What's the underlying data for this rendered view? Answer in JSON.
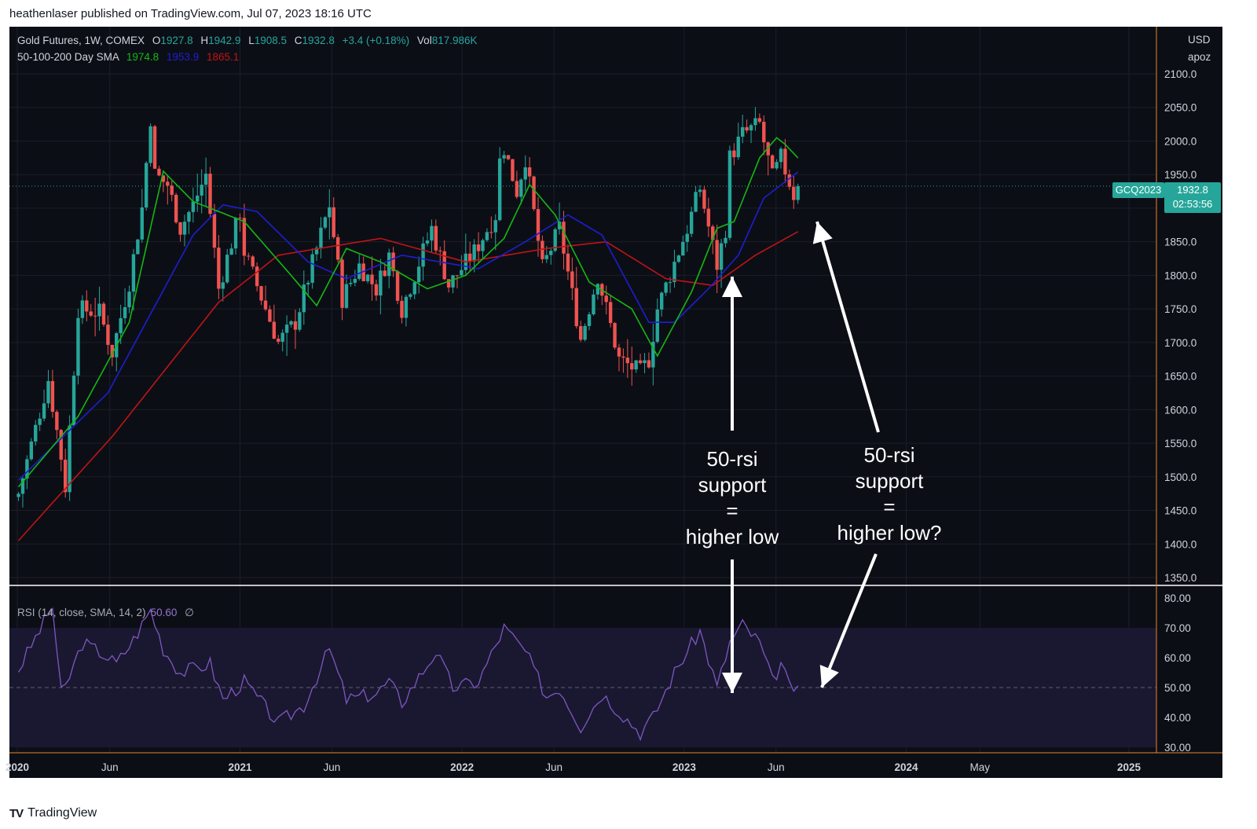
{
  "header": {
    "published": "heathenlaser published on TradingView.com, Jul 07, 2023 18:16 UTC"
  },
  "footer": {
    "logo_text": "TradingView",
    "logo_mark": "TV"
  },
  "legend": {
    "symbol": "Gold Futures, 1W, COMEX",
    "open_label": "O",
    "open": "1927.8",
    "high_label": "H",
    "high": "1942.9",
    "low_label": "L",
    "low": "1908.5",
    "close_label": "C",
    "close": "1932.8",
    "change": "+3.4 (+0.18%)",
    "vol_label": "Vol",
    "vol": "817.986K",
    "sma_label": "50-100-200 Day SMA",
    "sma50": "1974.8",
    "sma100": "1953.9",
    "sma200": "1865.1",
    "rsi_label": "RSI (14, close, SMA, 14, 2)",
    "rsi_value": "50.60",
    "rsi_icon": "∅"
  },
  "currency": {
    "line1": "USD",
    "line2": "apoz"
  },
  "badges": {
    "symbol": "GCQ2023",
    "price": "1932.8",
    "countdown": "02:53:56"
  },
  "colors": {
    "bg": "#0c0e16",
    "up": "#26a69a",
    "down": "#ef5350",
    "sma50": "#14b814",
    "sma100": "#1e1ed2",
    "sma200": "#c01414",
    "rsi": "#7e57c2",
    "rsi_band": "#1a1830",
    "separator": "#ffffff",
    "axis_accent": "#e8862a"
  },
  "annotations": [
    {
      "text_lines": [
        "50-rsi",
        "support",
        "=",
        "higher low"
      ]
    },
    {
      "text_lines": [
        "50-rsi",
        "support",
        "=",
        "higher low?"
      ]
    }
  ],
  "chart_data": [
    {
      "type": "candlestick",
      "x_tick_labels": [
        "2020",
        "Jun",
        "2021",
        "Jun",
        "2022",
        "Jun",
        "2023",
        "Jun",
        "2024",
        "May",
        "2025"
      ],
      "x_tick_dates": [
        "2020-01-01",
        "2020-06-01",
        "2021-01-01",
        "2021-06-01",
        "2022-01-01",
        "2022-06-01",
        "2023-01-01",
        "2023-06-01",
        "2024-01-01",
        "2024-05-01",
        "2025-01-01"
      ],
      "price_ticks": [
        "2100.0",
        "2050.0",
        "2000.0",
        "1950.0",
        "1900.0",
        "1850.0",
        "1800.0",
        "1750.0",
        "1700.0",
        "1650.0",
        "1600.0",
        "1550.0",
        "1500.0",
        "1450.0",
        "1400.0",
        "1350.0"
      ],
      "ylim": [
        1335,
        2110
      ],
      "last_price": 1932.8,
      "price_anchors": [
        [
          "2020-01-03",
          1475
        ],
        [
          "2020-02-21",
          1645
        ],
        [
          "2020-03-13",
          1530
        ],
        [
          "2020-03-20",
          1485
        ],
        [
          "2020-04-10",
          1750
        ],
        [
          "2020-05-15",
          1745
        ],
        [
          "2020-06-05",
          1685
        ],
        [
          "2020-07-03",
          1790
        ],
        [
          "2020-07-24",
          1900
        ],
        [
          "2020-08-07",
          2035
        ],
        [
          "2020-08-14",
          1950
        ],
        [
          "2020-09-04",
          1935
        ],
        [
          "2020-09-25",
          1870
        ],
        [
          "2020-10-16",
          1905
        ],
        [
          "2020-11-06",
          1950
        ],
        [
          "2020-11-27",
          1780
        ],
        [
          "2021-01-01",
          1895
        ],
        [
          "2021-01-08",
          1835
        ],
        [
          "2021-03-05",
          1700
        ],
        [
          "2021-04-02",
          1730
        ],
        [
          "2021-05-28",
          1905
        ],
        [
          "2021-06-18",
          1765
        ],
        [
          "2021-07-16",
          1815
        ],
        [
          "2021-08-13",
          1780
        ],
        [
          "2021-09-03",
          1830
        ],
        [
          "2021-09-24",
          1750
        ],
        [
          "2021-11-12",
          1870
        ],
        [
          "2021-12-10",
          1785
        ],
        [
          "2022-01-21",
          1835
        ],
        [
          "2022-02-25",
          1890
        ],
        [
          "2022-03-04",
          1970
        ],
        [
          "2022-03-11",
          1990
        ],
        [
          "2022-04-01",
          1925
        ],
        [
          "2022-04-15",
          1975
        ],
        [
          "2022-05-13",
          1810
        ],
        [
          "2022-06-10",
          1870
        ],
        [
          "2022-07-15",
          1705
        ],
        [
          "2022-08-12",
          1800
        ],
        [
          "2022-09-16",
          1675
        ],
        [
          "2022-10-21",
          1655
        ],
        [
          "2022-11-04",
          1675
        ],
        [
          "2022-11-18",
          1750
        ],
        [
          "2023-01-06",
          1870
        ],
        [
          "2023-01-27",
          1930
        ],
        [
          "2023-02-24",
          1815
        ],
        [
          "2023-03-10",
          1870
        ],
        [
          "2023-03-17",
          1975
        ],
        [
          "2023-04-07",
          2010
        ],
        [
          "2023-05-05",
          2025
        ],
        [
          "2023-05-26",
          1945
        ],
        [
          "2023-06-09",
          1975
        ],
        [
          "2023-06-30",
          1920
        ],
        [
          "2023-07-07",
          1932.8
        ]
      ],
      "sma50_anchors": [
        [
          "2020-01-03",
          1485
        ],
        [
          "2020-04-10",
          1590
        ],
        [
          "2020-07-03",
          1730
        ],
        [
          "2020-08-28",
          1955
        ],
        [
          "2020-10-16",
          1910
        ],
        [
          "2021-01-08",
          1880
        ],
        [
          "2021-03-26",
          1800
        ],
        [
          "2021-05-07",
          1755
        ],
        [
          "2021-06-25",
          1840
        ],
        [
          "2021-08-20",
          1820
        ],
        [
          "2021-11-05",
          1780
        ],
        [
          "2022-01-07",
          1800
        ],
        [
          "2022-03-11",
          1855
        ],
        [
          "2022-04-22",
          1935
        ],
        [
          "2022-06-03",
          1890
        ],
        [
          "2022-07-29",
          1790
        ],
        [
          "2022-10-07",
          1750
        ],
        [
          "2022-11-18",
          1680
        ],
        [
          "2023-01-13",
          1775
        ],
        [
          "2023-02-24",
          1870
        ],
        [
          "2023-03-24",
          1880
        ],
        [
          "2023-05-05",
          1975
        ],
        [
          "2023-06-02",
          2005
        ],
        [
          "2023-06-16",
          1995
        ],
        [
          "2023-07-07",
          1974.8
        ]
      ],
      "sma100_anchors": [
        [
          "2020-01-03",
          1495
        ],
        [
          "2020-05-29",
          1625
        ],
        [
          "2020-10-16",
          1860
        ],
        [
          "2020-12-04",
          1905
        ],
        [
          "2021-01-29",
          1895
        ],
        [
          "2021-04-23",
          1820
        ],
        [
          "2021-06-25",
          1795
        ],
        [
          "2021-09-24",
          1830
        ],
        [
          "2022-01-28",
          1810
        ],
        [
          "2022-04-15",
          1850
        ],
        [
          "2022-06-24",
          1890
        ],
        [
          "2022-08-19",
          1860
        ],
        [
          "2022-11-04",
          1730
        ],
        [
          "2022-12-16",
          1730
        ],
        [
          "2023-02-10",
          1780
        ],
        [
          "2023-03-31",
          1830
        ],
        [
          "2023-05-12",
          1915
        ],
        [
          "2023-07-07",
          1953.9
        ]
      ],
      "sma200_anchors": [
        [
          "2020-01-03",
          1405
        ],
        [
          "2020-06-05",
          1560
        ],
        [
          "2020-11-27",
          1760
        ],
        [
          "2021-03-05",
          1830
        ],
        [
          "2021-08-20",
          1855
        ],
        [
          "2022-01-07",
          1820
        ],
        [
          "2022-05-20",
          1840
        ],
        [
          "2022-08-26",
          1850
        ],
        [
          "2022-12-02",
          1795
        ],
        [
          "2023-02-17",
          1785
        ],
        [
          "2023-04-28",
          1830
        ],
        [
          "2023-07-07",
          1865.1
        ]
      ]
    },
    {
      "type": "line",
      "series": [
        {
          "name": "RSI (14, close, SMA, 14, 2)"
        }
      ],
      "rsi_ticks": [
        "80.00",
        "70.00",
        "60.00",
        "50.00",
        "40.00",
        "30.00"
      ],
      "ylim": [
        29,
        84
      ],
      "band": [
        30,
        70
      ],
      "midline": 50,
      "rsi_anchors": [
        [
          "2020-01-03",
          56
        ],
        [
          "2020-02-14",
          72
        ],
        [
          "2020-02-28",
          77
        ],
        [
          "2020-03-13",
          48
        ],
        [
          "2020-03-20",
          50
        ],
        [
          "2020-04-17",
          65
        ],
        [
          "2020-05-15",
          62
        ],
        [
          "2020-06-12",
          58
        ],
        [
          "2020-07-10",
          66
        ],
        [
          "2020-08-07",
          76
        ],
        [
          "2020-08-28",
          63
        ],
        [
          "2020-09-25",
          55
        ],
        [
          "2020-11-13",
          58
        ],
        [
          "2020-12-04",
          46
        ],
        [
          "2021-01-08",
          52
        ],
        [
          "2021-03-05",
          38
        ],
        [
          "2021-04-16",
          44
        ],
        [
          "2021-05-28",
          63
        ],
        [
          "2021-06-25",
          46
        ],
        [
          "2021-08-13",
          48
        ],
        [
          "2021-09-03",
          52
        ],
        [
          "2021-09-24",
          45
        ],
        [
          "2021-11-19",
          62
        ],
        [
          "2021-12-17",
          50
        ],
        [
          "2022-01-28",
          52
        ],
        [
          "2022-03-11",
          70
        ],
        [
          "2022-04-15",
          62
        ],
        [
          "2022-05-20",
          47
        ],
        [
          "2022-06-10",
          50
        ],
        [
          "2022-07-15",
          37
        ],
        [
          "2022-08-19",
          48
        ],
        [
          "2022-10-21",
          35
        ],
        [
          "2022-11-11",
          40
        ],
        [
          "2022-12-16",
          55
        ],
        [
          "2023-01-27",
          69
        ],
        [
          "2023-02-24",
          50
        ],
        [
          "2023-03-17",
          65
        ],
        [
          "2023-04-07",
          71
        ],
        [
          "2023-05-05",
          65
        ],
        [
          "2023-05-26",
          52
        ],
        [
          "2023-06-09",
          58
        ],
        [
          "2023-06-23",
          50
        ],
        [
          "2023-07-07",
          50.6
        ]
      ]
    }
  ]
}
